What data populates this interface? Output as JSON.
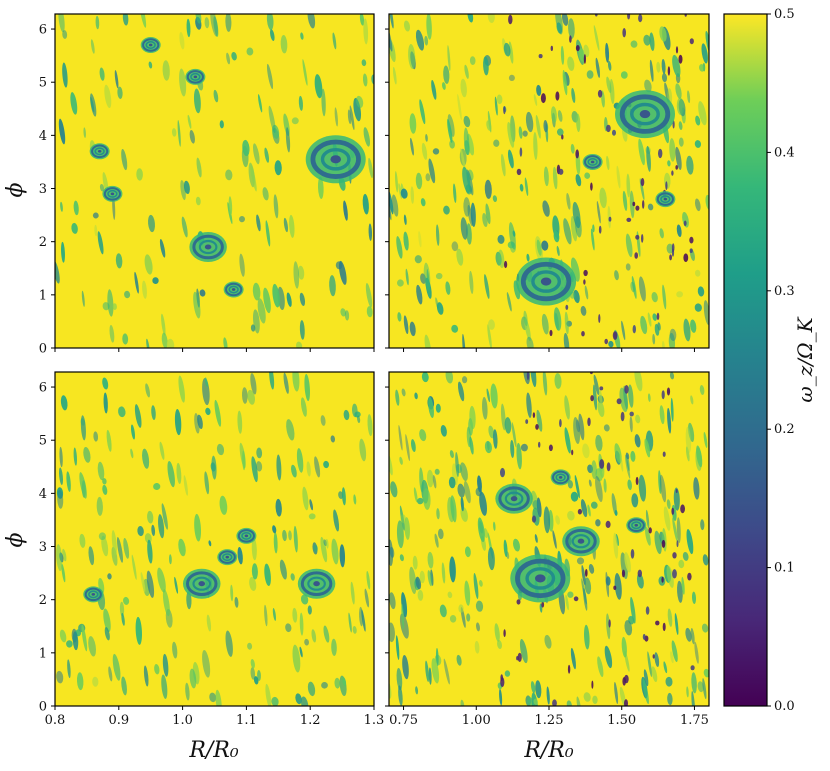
{
  "chart_data": [
    {
      "type": "heatmap",
      "panel": "top-left",
      "xlabel": "",
      "ylabel": "ϕ",
      "xlim": [
        0.8,
        1.3
      ],
      "ylim": [
        0,
        6.283
      ],
      "yticks": [
        "0",
        "1",
        "2",
        "3",
        "4",
        "5",
        "6"
      ],
      "xticks": [],
      "vortices": [
        {
          "x": 1.24,
          "y": 3.55,
          "size": "large"
        },
        {
          "x": 1.04,
          "y": 1.9,
          "size": "medium"
        },
        {
          "x": 1.08,
          "y": 1.1,
          "size": "small"
        },
        {
          "x": 0.95,
          "y": 5.7,
          "size": "small"
        },
        {
          "x": 0.87,
          "y": 3.7,
          "size": "small"
        },
        {
          "x": 0.89,
          "y": 2.9,
          "size": "small"
        },
        {
          "x": 1.02,
          "y": 5.1,
          "size": "small"
        }
      ]
    },
    {
      "type": "heatmap",
      "panel": "top-right",
      "xlabel": "",
      "ylabel": "",
      "xlim": [
        0.7,
        1.8
      ],
      "ylim": [
        0,
        6.283
      ],
      "yticks": [],
      "xticks": [],
      "vortices": [
        {
          "x": 1.58,
          "y": 4.4,
          "size": "large"
        },
        {
          "x": 1.24,
          "y": 1.25,
          "size": "large"
        },
        {
          "x": 1.65,
          "y": 2.8,
          "size": "small"
        },
        {
          "x": 1.4,
          "y": 3.5,
          "size": "small"
        }
      ]
    },
    {
      "type": "heatmap",
      "panel": "bottom-left",
      "xlabel": "R/R₀",
      "ylabel": "ϕ",
      "xlim": [
        0.8,
        1.3
      ],
      "ylim": [
        0,
        6.283
      ],
      "yticks": [
        "0",
        "1",
        "2",
        "3",
        "4",
        "5",
        "6"
      ],
      "xticks": [
        "0.8",
        "0.9",
        "1.0",
        "1.1",
        "1.2",
        "1.3"
      ],
      "vortices": [
        {
          "x": 1.03,
          "y": 2.3,
          "size": "medium"
        },
        {
          "x": 1.21,
          "y": 2.3,
          "size": "medium"
        },
        {
          "x": 1.07,
          "y": 2.8,
          "size": "small"
        },
        {
          "x": 0.86,
          "y": 2.1,
          "size": "small"
        },
        {
          "x": 1.1,
          "y": 3.2,
          "size": "small"
        }
      ]
    },
    {
      "type": "heatmap",
      "panel": "bottom-right",
      "xlabel": "R/R₀",
      "ylabel": "",
      "xlim": [
        0.7,
        1.8
      ],
      "ylim": [
        0,
        6.283
      ],
      "yticks": [],
      "xticks": [
        "0.75",
        "1.00",
        "1.25",
        "1.50",
        "1.75"
      ],
      "vortices": [
        {
          "x": 1.13,
          "y": 3.9,
          "size": "medium"
        },
        {
          "x": 1.22,
          "y": 2.4,
          "size": "large"
        },
        {
          "x": 1.36,
          "y": 3.1,
          "size": "medium"
        },
        {
          "x": 1.29,
          "y": 4.3,
          "size": "small"
        },
        {
          "x": 1.55,
          "y": 3.4,
          "size": "small"
        }
      ]
    }
  ],
  "colorbar": {
    "label": "ω_z/Ω_K",
    "colormap": "viridis",
    "range": [
      0.0,
      0.5
    ],
    "ticks": [
      "0.0",
      "0.1",
      "0.2",
      "0.3",
      "0.4",
      "0.5"
    ]
  },
  "colors": {
    "background_field": "#f4e522",
    "viridis_low": "#440154",
    "viridis_high": "#fde725"
  }
}
